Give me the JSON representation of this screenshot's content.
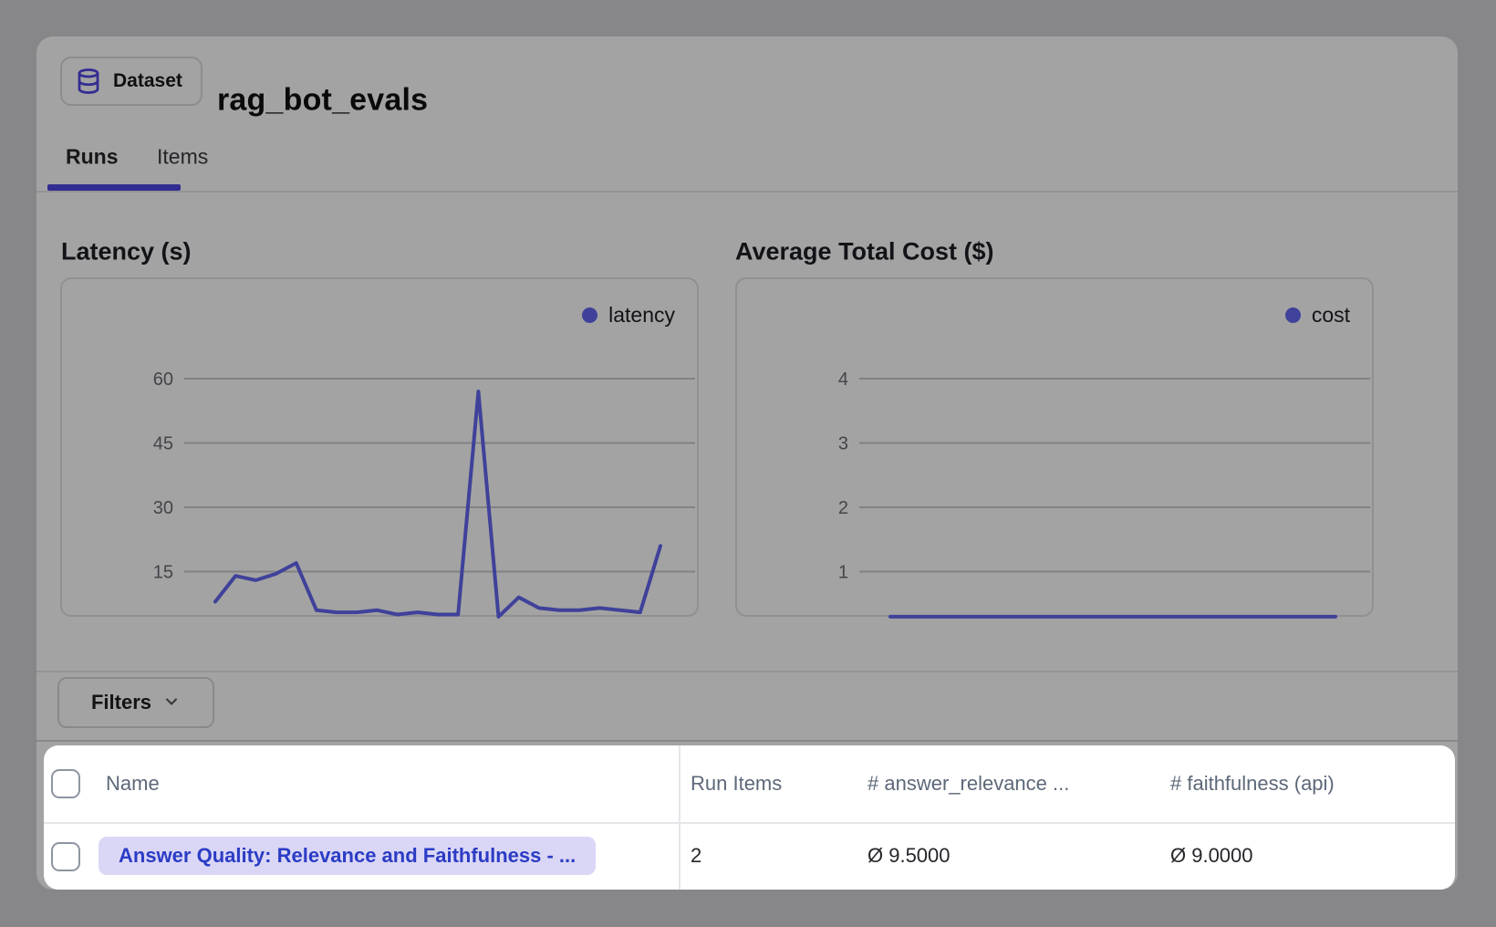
{
  "header": {
    "badge_label": "Dataset",
    "title": "rag_bot_evals"
  },
  "tabs": [
    {
      "label": "Runs",
      "active": true
    },
    {
      "label": "Items",
      "active": false
    }
  ],
  "chart_data": [
    {
      "type": "line",
      "title": "Latency (s)",
      "legend": "latency",
      "color": "#6366f1",
      "yticks": [
        15,
        30,
        45,
        60
      ],
      "ylim": [
        0,
        65
      ],
      "grid": true,
      "legend_position": "top-right",
      "x": "run index (oldest to newest)",
      "values": [
        8,
        14,
        13,
        14.5,
        17,
        6,
        5.5,
        5.5,
        6,
        5,
        5.5,
        5,
        5,
        57,
        4.5,
        9,
        6.5,
        6,
        6,
        6.5,
        6,
        5.5,
        21
      ]
    },
    {
      "type": "line",
      "title": "Average Total Cost ($)",
      "legend": "cost",
      "color": "#6366f1",
      "yticks": [
        1,
        2,
        3,
        4
      ],
      "ylim": [
        0,
        4.5
      ],
      "grid": true,
      "legend_position": "top-right",
      "x": "run index (oldest to newest)",
      "values": [
        0.3,
        0.3,
        0.3,
        0.3,
        0.3,
        0.3,
        0.3,
        0.3,
        0.3,
        0.3,
        0.3,
        0.3,
        0.3,
        0.3
      ]
    }
  ],
  "filters": {
    "label": "Filters"
  },
  "table": {
    "columns": [
      "Name",
      "Run Items",
      "# answer_relevance ...",
      "# faithfulness (api)"
    ],
    "rows": [
      {
        "name": "Answer Quality: Relevance and Faithfulness - ...",
        "run_items": "2",
        "answer_relevance": "Ø 9.5000",
        "faithfulness": "Ø 9.0000"
      }
    ]
  },
  "colors": {
    "accent_indigo": "#4f46e5",
    "chart_line": "#6366f1",
    "link_text": "#2b3cc4",
    "link_pill_bg": "#dad7f6",
    "table_header_text": "#5d6878",
    "overlay": "rgba(0,0,0,0.36)"
  }
}
